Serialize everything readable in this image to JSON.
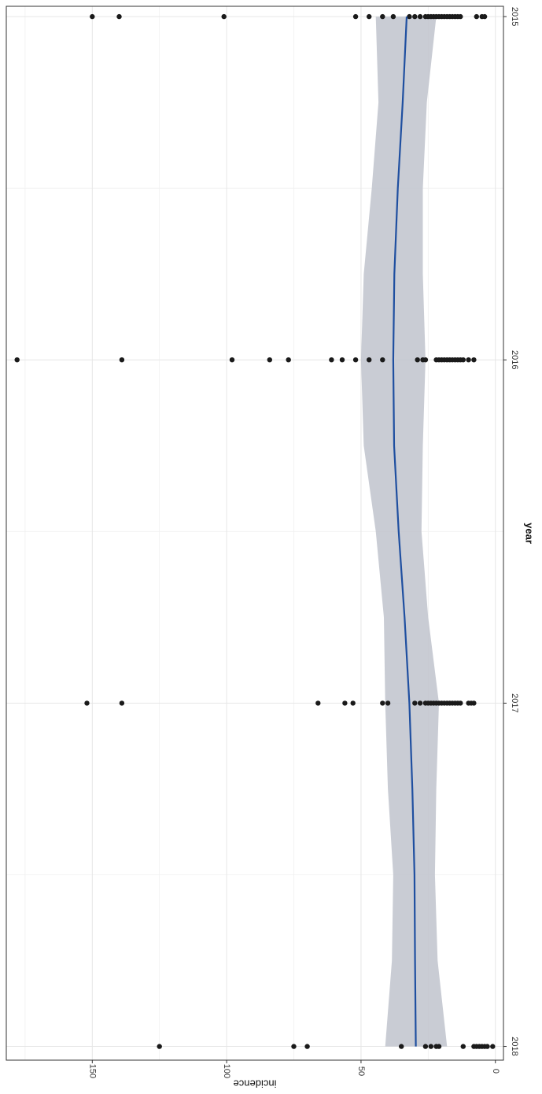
{
  "chart_data": {
    "type": "scatter",
    "orientation": "rotated-90-clockwise",
    "xlabel": "year",
    "ylabel": "incidence",
    "x_ticks": [
      "2015",
      "2016",
      "2017",
      "2018"
    ],
    "y_ticks": [
      "0",
      "50",
      "100",
      "150"
    ],
    "xlim": [
      2014.97,
      2018.04
    ],
    "ylim": [
      -3,
      182
    ],
    "grid": true,
    "legend": "none",
    "series": [
      {
        "kind": "points",
        "points": [
          {
            "x": 2015,
            "y": 150
          },
          {
            "x": 2015,
            "y": 140
          },
          {
            "x": 2015,
            "y": 101
          },
          {
            "x": 2015,
            "y": 52
          },
          {
            "x": 2015,
            "y": 47
          },
          {
            "x": 2015,
            "y": 42
          },
          {
            "x": 2015,
            "y": 38
          },
          {
            "x": 2015,
            "y": 32
          },
          {
            "x": 2015,
            "y": 30
          },
          {
            "x": 2015,
            "y": 28
          },
          {
            "x": 2015,
            "y": 26
          },
          {
            "x": 2015,
            "y": 25
          },
          {
            "x": 2015,
            "y": 24
          },
          {
            "x": 2015,
            "y": 23
          },
          {
            "x": 2015,
            "y": 22
          },
          {
            "x": 2015,
            "y": 21
          },
          {
            "x": 2015,
            "y": 20
          },
          {
            "x": 2015,
            "y": 19
          },
          {
            "x": 2015,
            "y": 18
          },
          {
            "x": 2015,
            "y": 17
          },
          {
            "x": 2015,
            "y": 16
          },
          {
            "x": 2015,
            "y": 15
          },
          {
            "x": 2015,
            "y": 14
          },
          {
            "x": 2015,
            "y": 13
          },
          {
            "x": 2015,
            "y": 7
          },
          {
            "x": 2015,
            "y": 5
          },
          {
            "x": 2015,
            "y": 4
          },
          {
            "x": 2016,
            "y": 178
          },
          {
            "x": 2016,
            "y": 139
          },
          {
            "x": 2016,
            "y": 98
          },
          {
            "x": 2016,
            "y": 84
          },
          {
            "x": 2016,
            "y": 77
          },
          {
            "x": 2016,
            "y": 61
          },
          {
            "x": 2016,
            "y": 57
          },
          {
            "x": 2016,
            "y": 52
          },
          {
            "x": 2016,
            "y": 47
          },
          {
            "x": 2016,
            "y": 42
          },
          {
            "x": 2016,
            "y": 29
          },
          {
            "x": 2016,
            "y": 27
          },
          {
            "x": 2016,
            "y": 26
          },
          {
            "x": 2016,
            "y": 22
          },
          {
            "x": 2016,
            "y": 21
          },
          {
            "x": 2016,
            "y": 20
          },
          {
            "x": 2016,
            "y": 19
          },
          {
            "x": 2016,
            "y": 18
          },
          {
            "x": 2016,
            "y": 17
          },
          {
            "x": 2016,
            "y": 16
          },
          {
            "x": 2016,
            "y": 15
          },
          {
            "x": 2016,
            "y": 14
          },
          {
            "x": 2016,
            "y": 13
          },
          {
            "x": 2016,
            "y": 12
          },
          {
            "x": 2016,
            "y": 10
          },
          {
            "x": 2016,
            "y": 8
          },
          {
            "x": 2017,
            "y": 152
          },
          {
            "x": 2017,
            "y": 139
          },
          {
            "x": 2017,
            "y": 66
          },
          {
            "x": 2017,
            "y": 56
          },
          {
            "x": 2017,
            "y": 53
          },
          {
            "x": 2017,
            "y": 42
          },
          {
            "x": 2017,
            "y": 40
          },
          {
            "x": 2017,
            "y": 30
          },
          {
            "x": 2017,
            "y": 28
          },
          {
            "x": 2017,
            "y": 26
          },
          {
            "x": 2017,
            "y": 25
          },
          {
            "x": 2017,
            "y": 24
          },
          {
            "x": 2017,
            "y": 23
          },
          {
            "x": 2017,
            "y": 22
          },
          {
            "x": 2017,
            "y": 21
          },
          {
            "x": 2017,
            "y": 20
          },
          {
            "x": 2017,
            "y": 19
          },
          {
            "x": 2017,
            "y": 18
          },
          {
            "x": 2017,
            "y": 17
          },
          {
            "x": 2017,
            "y": 16
          },
          {
            "x": 2017,
            "y": 15
          },
          {
            "x": 2017,
            "y": 14
          },
          {
            "x": 2017,
            "y": 13
          },
          {
            "x": 2017,
            "y": 10
          },
          {
            "x": 2017,
            "y": 9
          },
          {
            "x": 2017,
            "y": 8
          },
          {
            "x": 2018,
            "y": 125
          },
          {
            "x": 2018,
            "y": 75
          },
          {
            "x": 2018,
            "y": 70
          },
          {
            "x": 2018,
            "y": 35
          },
          {
            "x": 2018,
            "y": 26
          },
          {
            "x": 2018,
            "y": 24
          },
          {
            "x": 2018,
            "y": 22
          },
          {
            "x": 2018,
            "y": 21
          },
          {
            "x": 2018,
            "y": 12
          },
          {
            "x": 2018,
            "y": 8
          },
          {
            "x": 2018,
            "y": 7
          },
          {
            "x": 2018,
            "y": 6
          },
          {
            "x": 2018,
            "y": 5
          },
          {
            "x": 2018,
            "y": 4
          },
          {
            "x": 2018,
            "y": 3
          },
          {
            "x": 2018,
            "y": 1
          }
        ]
      },
      {
        "kind": "smooth",
        "points": [
          {
            "x": 2015.0,
            "y": 33
          },
          {
            "x": 2015.25,
            "y": 34.5
          },
          {
            "x": 2015.5,
            "y": 36.3
          },
          {
            "x": 2015.75,
            "y": 37.6
          },
          {
            "x": 2016.0,
            "y": 38
          },
          {
            "x": 2016.25,
            "y": 37.7
          },
          {
            "x": 2016.5,
            "y": 36
          },
          {
            "x": 2016.75,
            "y": 33.8
          },
          {
            "x": 2017.0,
            "y": 32
          },
          {
            "x": 2017.25,
            "y": 30.9
          },
          {
            "x": 2017.5,
            "y": 30.1
          },
          {
            "x": 2017.75,
            "y": 29.9
          },
          {
            "x": 2018.0,
            "y": 29.6
          }
        ],
        "ci_upper": [
          {
            "x": 2015.0,
            "y": 44.5
          },
          {
            "x": 2015.25,
            "y": 43.5
          },
          {
            "x": 2015.5,
            "y": 46
          },
          {
            "x": 2015.75,
            "y": 49
          },
          {
            "x": 2016.0,
            "y": 50
          },
          {
            "x": 2016.25,
            "y": 49
          },
          {
            "x": 2016.5,
            "y": 44.5
          },
          {
            "x": 2016.75,
            "y": 41.5
          },
          {
            "x": 2017.0,
            "y": 41
          },
          {
            "x": 2017.25,
            "y": 40
          },
          {
            "x": 2017.5,
            "y": 38
          },
          {
            "x": 2017.75,
            "y": 38.5
          },
          {
            "x": 2018.0,
            "y": 41
          }
        ],
        "ci_lower": [
          {
            "x": 2015.0,
            "y": 22
          },
          {
            "x": 2015.25,
            "y": 25.5
          },
          {
            "x": 2015.5,
            "y": 27
          },
          {
            "x": 2015.75,
            "y": 27
          },
          {
            "x": 2016.0,
            "y": 26
          },
          {
            "x": 2016.25,
            "y": 27
          },
          {
            "x": 2016.5,
            "y": 27.5
          },
          {
            "x": 2016.75,
            "y": 25
          },
          {
            "x": 2017.0,
            "y": 21
          },
          {
            "x": 2017.25,
            "y": 22
          },
          {
            "x": 2017.5,
            "y": 22.5
          },
          {
            "x": 2017.75,
            "y": 21.5
          },
          {
            "x": 2018.0,
            "y": 18
          }
        ]
      }
    ]
  },
  "colors": {
    "point": "#1a1a1a",
    "smooth_line": "#1f4fa0",
    "ci_band": "#bfc3cc",
    "grid": "#e6e6e6",
    "frame": "#333333"
  }
}
